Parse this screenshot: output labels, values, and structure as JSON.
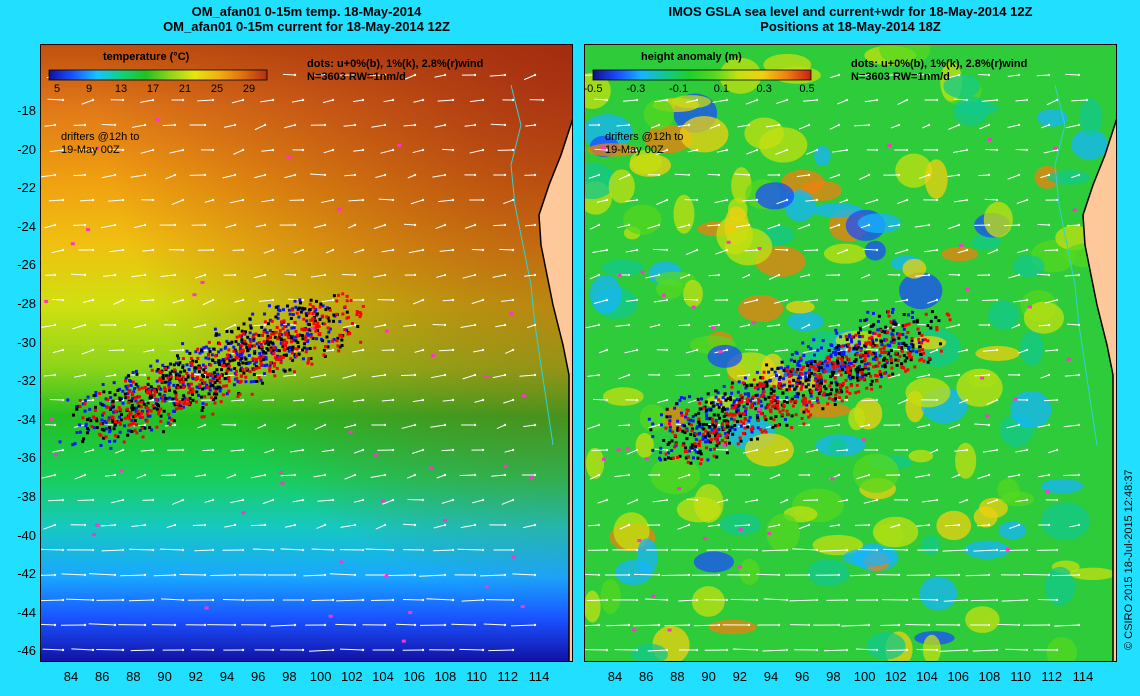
{
  "titles": {
    "left_line1": "OM_afan01 0-15m temp. 18-May-2014",
    "left_line2": "OM_afan01 0-15m current for 18-May-2014 12Z",
    "right_line1": "IMOS GSLA sea level and current+wdr for 18-May-2014 12Z",
    "right_line2": "Positions at 18-May-2014 18Z"
  },
  "left_panel": {
    "colorbar_title": "temperature (°C)",
    "colorbar_ticks": [
      "5",
      "9",
      "13",
      "17",
      "21",
      "25",
      "29"
    ],
    "dots_line1": "dots: u+0%(b), 1%(k), 2.8%(r)wind",
    "dots_line2": "N=3603 RW=1nm/d",
    "drifters_line1": "drifters @12h to",
    "drifters_line2": "19-May 00Z"
  },
  "right_panel": {
    "colorbar_title": "height anomaly (m)",
    "colorbar_ticks": [
      "-0.5",
      "-0.3",
      "-0.1",
      "0.1",
      "0.3",
      "0.5"
    ],
    "dots_line1": "dots: u+0%(b), 1%(k), 2.8%(r)wind",
    "dots_line2": "N=3603 RW=1nm/d",
    "drifters_line1": "drifters @12h to",
    "drifters_line2": "19-May 00Z"
  },
  "axes": {
    "y_ticks": [
      "-18",
      "-20",
      "-22",
      "-24",
      "-26",
      "-28",
      "-30",
      "-32",
      "-34",
      "-36",
      "-38",
      "-40",
      "-42",
      "-44",
      "-46"
    ],
    "x_ticks": [
      "84",
      "86",
      "88",
      "90",
      "92",
      "94",
      "96",
      "98",
      "100",
      "102",
      "104",
      "106",
      "108",
      "110",
      "112",
      "114"
    ],
    "right_x_ticks": [
      "84",
      "86",
      "88",
      "90",
      "92",
      "94",
      "96",
      "98",
      "100",
      "102",
      "104",
      "106",
      "108",
      "110",
      "112",
      "114"
    ]
  },
  "copyright": "© CSIRO 2015   18-Jul-2015 12:48:37",
  "colors": {
    "background": "#21e0ff",
    "land": "#ffc89a",
    "coast": "#000000",
    "isobath": "#2fd3d3",
    "dots_blue": "#0a14ff",
    "dots_black": "#000000",
    "dots_red": "#ff0000",
    "drifters": "#ff33cc"
  },
  "colorbar_temperature": [
    "#1010a0",
    "#1a55ff",
    "#19c3ff",
    "#14d07a",
    "#22c022",
    "#8fd51a",
    "#e8e410",
    "#f0b010",
    "#e07010",
    "#b03010"
  ],
  "colorbar_sla": [
    "#10108a",
    "#1c4cff",
    "#16b4ff",
    "#12c88c",
    "#1ed02a",
    "#54d820",
    "#c4e010",
    "#f0d010",
    "#f08010",
    "#c82010"
  ]
}
